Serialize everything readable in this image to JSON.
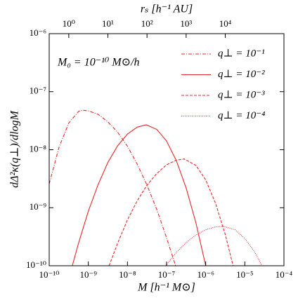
{
  "chart_data": {
    "type": "line",
    "xlabel": "M [h⁻¹ M⊙]",
    "ylabel": "dΔ²κ(q⊥)/dlogM",
    "x2label": "rₛ [h⁻¹ AU]",
    "annotation": "M₀ = 10⁻¹⁰ M⊙/h",
    "xscale": "log",
    "yscale": "log",
    "xlim": [
      1e-10,
      0.0001
    ],
    "ylim": [
      1e-10,
      1e-06
    ],
    "x2lim": [
      0.316,
      316228
    ],
    "xticks": [
      {
        "value": 1e-10,
        "label": "10⁻¹⁰"
      },
      {
        "value": 1e-09,
        "label": "10⁻⁹"
      },
      {
        "value": 1e-08,
        "label": "10⁻⁸"
      },
      {
        "value": 1e-07,
        "label": "10⁻⁷"
      },
      {
        "value": 1e-06,
        "label": "10⁻⁶"
      },
      {
        "value": 1e-05,
        "label": "10⁻⁵"
      },
      {
        "value": 0.0001,
        "label": "10⁻⁴"
      }
    ],
    "yticks": [
      {
        "value": 1e-10,
        "label": "10⁻¹⁰"
      },
      {
        "value": 1e-09,
        "label": "10⁻⁹"
      },
      {
        "value": 1e-08,
        "label": "10⁻⁸"
      },
      {
        "value": 1e-07,
        "label": "10⁻⁷"
      },
      {
        "value": 1e-06,
        "label": "10⁻⁶"
      }
    ],
    "x2ticks": [
      {
        "value": 1,
        "label": "10⁰"
      },
      {
        "value": 10,
        "label": "10¹"
      },
      {
        "value": 100,
        "label": "10²"
      },
      {
        "value": 1000,
        "label": "10³"
      },
      {
        "value": 10000,
        "label": "10⁴"
      }
    ],
    "legend": "upper right",
    "series": [
      {
        "name": "q⊥ = 10⁻¹",
        "color": "#e8262a",
        "linestyle": "dashdot",
        "x": [
          1e-10,
          1.78e-10,
          3.16e-10,
          5.62e-10,
          7.24e-10,
          1e-09,
          1.78e-09,
          3.16e-09,
          5.62e-09,
          1e-08,
          1.78e-08,
          3.16e-08,
          5.62e-08,
          1e-07,
          1.7e-07
        ],
        "values": [
          2.57e-09,
          1.1e-08,
          2.88e-08,
          4.57e-08,
          4.79e-08,
          4.68e-08,
          4.07e-08,
          3.02e-08,
          2e-08,
          1.15e-08,
          5.62e-09,
          2.45e-09,
          9.33e-10,
          3.02e-10,
          1e-10
        ]
      },
      {
        "name": "q⊥ = 10⁻²",
        "color": "#e8262a",
        "linestyle": "solid",
        "x": [
          3.89e-10,
          5.62e-10,
          1e-09,
          1.78e-09,
          3.16e-09,
          5.62e-09,
          1e-08,
          1.78e-08,
          3.02e-08,
          5.62e-08,
          1e-07,
          1.78e-07,
          3.16e-07,
          5.62e-07,
          1e-06
        ],
        "values": [
          1e-10,
          2.45e-10,
          8.71e-10,
          2.51e-09,
          6.03e-09,
          1.17e-08,
          1.86e-08,
          2.45e-08,
          2.69e-08,
          2.24e-08,
          1.41e-08,
          6.46e-09,
          2.19e-09,
          5.5e-10,
          1e-10
        ]
      },
      {
        "name": "q⊥ = 10⁻³",
        "color": "#e8262a",
        "linestyle": "dashed",
        "x": [
          3.39e-09,
          5.62e-09,
          1e-08,
          1.78e-08,
          3.16e-08,
          5.62e-08,
          1e-07,
          1.78e-07,
          2.82e-07,
          5.62e-07,
          1e-06,
          1.78e-06,
          3.16e-06,
          5.01e-06
        ],
        "values": [
          1e-10,
          2.45e-10,
          6.17e-10,
          1.32e-09,
          2.45e-09,
          3.89e-09,
          5.5e-09,
          6.61e-09,
          6.92e-09,
          5.37e-09,
          3.02e-09,
          1.2e-09,
          3.47e-10,
          1e-10
        ]
      },
      {
        "name": "q⊥ = 10⁻⁴",
        "color": "#e8262a",
        "linestyle": "dotted",
        "x": [
          9.55e-08,
          1.78e-07,
          3.16e-07,
          5.62e-07,
          1e-06,
          1.78e-06,
          2.82e-06,
          5.62e-06,
          1e-05,
          1.78e-05,
          2.75e-05
        ],
        "values": [
          1e-10,
          1.7e-10,
          2.51e-10,
          3.39e-10,
          4.17e-10,
          4.68e-10,
          4.79e-10,
          4.17e-10,
          2.95e-10,
          1.74e-10,
          1e-10
        ]
      }
    ]
  }
}
